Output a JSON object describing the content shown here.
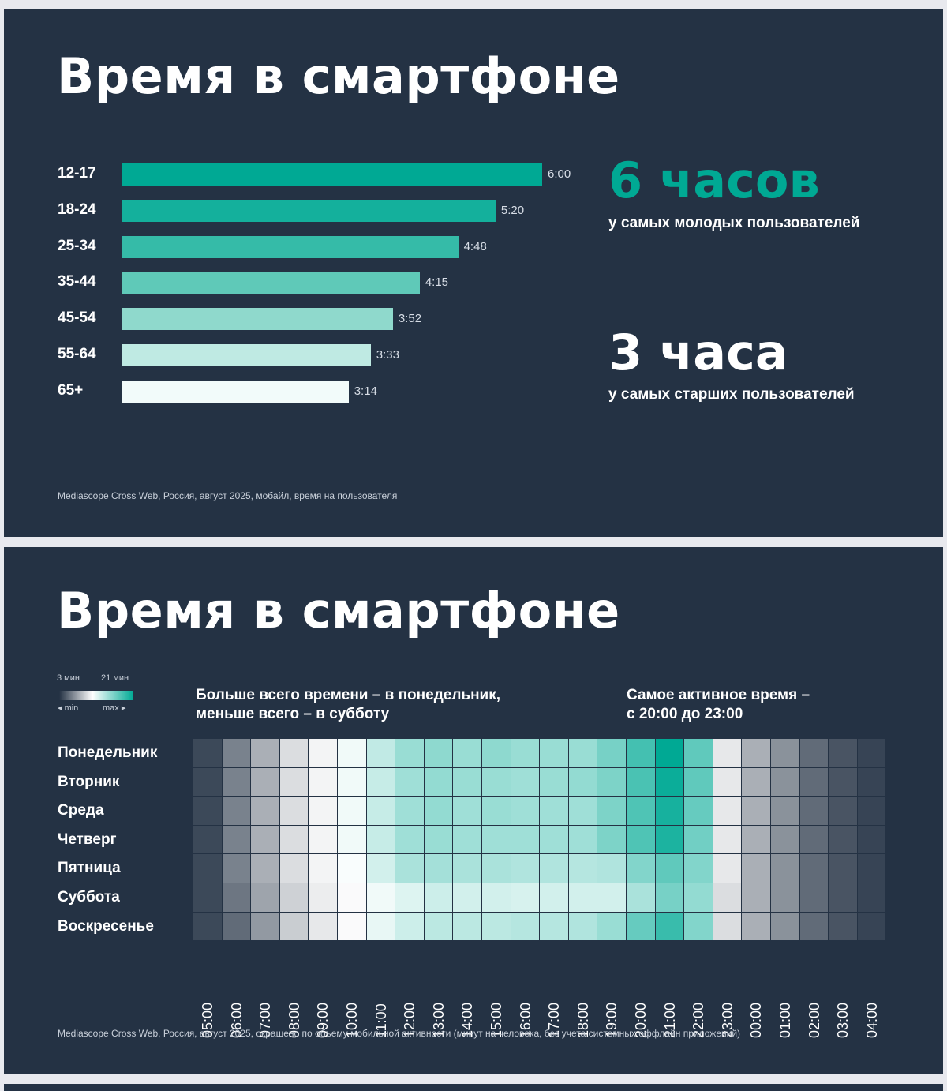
{
  "slide1": {
    "title": "Время в смартфоне",
    "highlight_top": {
      "number": "6 часов",
      "caption": "у самых молодых пользователей",
      "color": "#00a994"
    },
    "highlight_bottom": {
      "number": "3 часа",
      "caption": "у самых старших пользователей",
      "color": "#ffffff"
    },
    "source": "Mediascope Cross Web, Россия, август 2025, мобайл, время на пользователя"
  },
  "slide2": {
    "title": "Время в смартфоне",
    "legend": {
      "min_value": "3 мин",
      "max_value": "21 мин",
      "min_label": "◂ min",
      "max_label": "max ▸"
    },
    "subhead_left": [
      "Больше всего времени – в понедельник,",
      "меньше всего – в субботу"
    ],
    "subhead_right": [
      "Самое активное время –",
      "с 20:00 до 23:00"
    ],
    "source": "Mediascope Cross Web, Россия, август 2025, окрашено по объему мобильной активности (минут на человека, без учета системных оффлайн приложений)"
  },
  "chart_data": [
    {
      "type": "bar",
      "orientation": "horizontal",
      "categories": [
        "12-17",
        "18-24",
        "25-34",
        "35-44",
        "45-54",
        "55-64",
        "65+"
      ],
      "value_labels": [
        "6:00",
        "5:20",
        "4:48",
        "4:15",
        "3:52",
        "3:33",
        "3:14"
      ],
      "values_minutes": [
        360,
        320,
        288,
        255,
        232,
        213,
        194
      ],
      "colors": [
        "#00a994",
        "#14b09c",
        "#35bba8",
        "#5fc9b8",
        "#8fd9cc",
        "#bfeae3",
        "#f2fbfa"
      ]
    },
    {
      "type": "heatmap",
      "rows": [
        "Понедельник",
        "Вторник",
        "Среда",
        "Четверг",
        "Пятница",
        "Суббота",
        "Воскресенье"
      ],
      "columns": [
        "05:00",
        "06:00",
        "07:00",
        "08:00",
        "09:00",
        "10:00",
        "11:00",
        "12:00",
        "13:00",
        "14:00",
        "15:00",
        "16:00",
        "17:00",
        "18:00",
        "19:00",
        "20:00",
        "21:00",
        "22:00",
        "23:00",
        "00:00",
        "01:00",
        "02:00",
        "03:00",
        "04:00"
      ],
      "value_range_min": [
        3,
        21
      ],
      "values": [
        [
          4.0,
          6.5,
          8.5,
          10.5,
          11.5,
          12.5,
          14.2,
          15.6,
          16.0,
          15.6,
          16.0,
          15.6,
          15.6,
          15.6,
          16.8,
          18.6,
          21.0,
          17.6,
          11.0,
          8.5,
          7.2,
          5.5,
          4.5,
          3.8
        ],
        [
          4.0,
          6.5,
          8.5,
          10.5,
          11.5,
          12.5,
          14.0,
          15.4,
          15.8,
          15.6,
          15.6,
          15.4,
          15.6,
          15.8,
          16.6,
          18.4,
          20.6,
          17.6,
          11.0,
          8.5,
          7.2,
          5.5,
          4.5,
          3.8
        ],
        [
          4.0,
          6.5,
          8.5,
          10.5,
          11.5,
          12.5,
          14.0,
          15.4,
          15.8,
          15.4,
          15.6,
          15.4,
          15.4,
          15.4,
          16.6,
          18.2,
          20.2,
          17.4,
          11.0,
          8.5,
          7.2,
          5.5,
          4.5,
          3.8
        ],
        [
          4.0,
          6.5,
          8.5,
          10.5,
          11.5,
          12.5,
          14.0,
          15.4,
          15.6,
          15.4,
          15.4,
          15.4,
          15.4,
          15.4,
          16.6,
          18.2,
          20.0,
          17.0,
          11.0,
          8.5,
          7.2,
          5.5,
          4.5,
          3.8
        ],
        [
          4.0,
          6.5,
          8.5,
          10.5,
          11.5,
          12.2,
          13.6,
          15.0,
          15.2,
          15.0,
          15.0,
          14.8,
          14.8,
          14.6,
          14.8,
          16.4,
          17.6,
          16.4,
          11.0,
          8.5,
          7.2,
          5.5,
          4.5,
          3.8
        ],
        [
          4.0,
          6.0,
          8.0,
          10.0,
          11.2,
          11.8,
          12.5,
          13.2,
          13.8,
          13.6,
          13.6,
          13.4,
          13.6,
          13.6,
          13.6,
          15.0,
          16.8,
          15.8,
          10.5,
          8.5,
          7.2,
          5.5,
          4.5,
          3.8
        ],
        [
          4.0,
          5.5,
          7.5,
          9.8,
          11.0,
          11.8,
          12.8,
          13.8,
          14.4,
          14.4,
          14.4,
          14.6,
          14.6,
          14.8,
          15.6,
          17.4,
          19.0,
          16.4,
          10.5,
          8.5,
          7.2,
          5.5,
          4.5,
          3.8
        ]
      ]
    }
  ]
}
